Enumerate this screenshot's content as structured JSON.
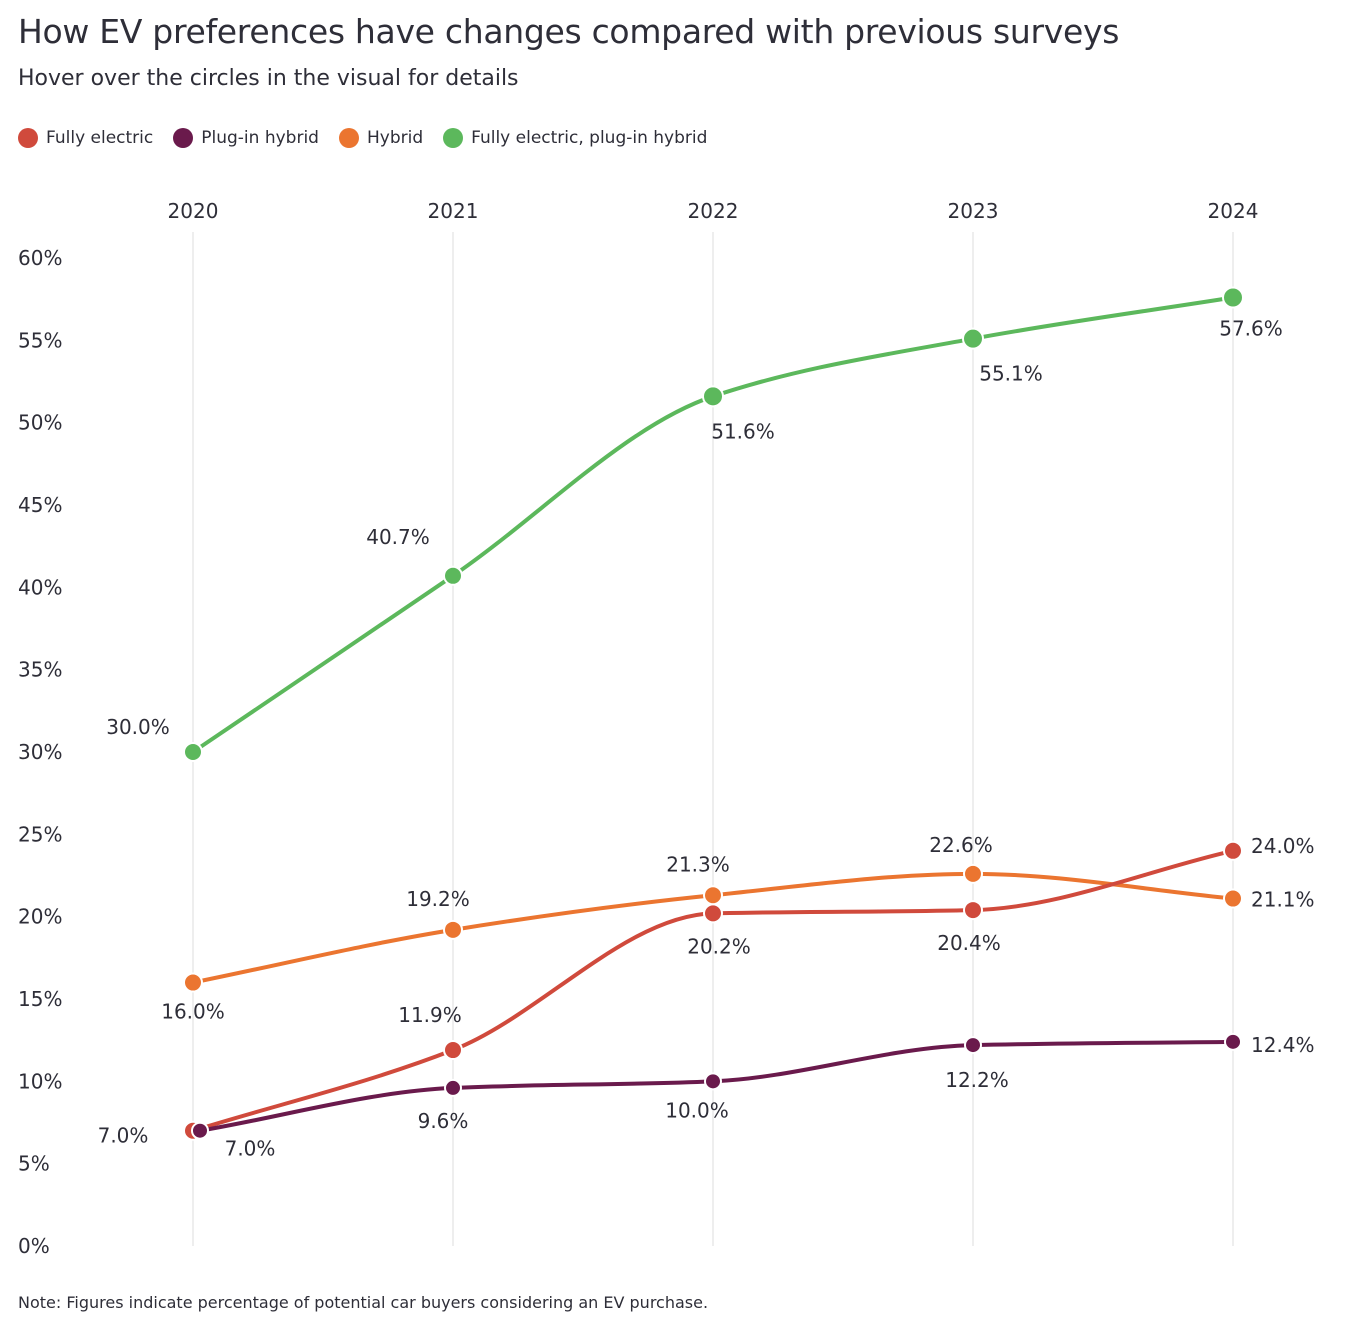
{
  "header": {
    "title": "How EV preferences have changes compared with previous surveys",
    "subtitle": "Hover over the circles in the visual for details"
  },
  "legend": [
    {
      "label": "Fully electric",
      "color": "#d04a3c"
    },
    {
      "label": "Plug-in hybrid",
      "color": "#6a1a4c"
    },
    {
      "label": "Hybrid",
      "color": "#eb7530"
    },
    {
      "label": "Fully electric, plug-in hybrid",
      "color": "#5cb85c"
    }
  ],
  "note": "Note: Figures indicate percentage of potential car buyers considering an EV purchase.",
  "chart_data": {
    "type": "line",
    "x": [
      "2020",
      "2021",
      "2022",
      "2023",
      "2024"
    ],
    "yticks": [
      "0%",
      "5%",
      "10%",
      "15%",
      "20%",
      "25%",
      "30%",
      "35%",
      "40%",
      "45%",
      "50%",
      "55%",
      "60%"
    ],
    "ylim": [
      0,
      60
    ],
    "grid": "vertical",
    "xaxis_position": "top",
    "legend_position": "top-left",
    "series": [
      {
        "name": "Fully electric, plug-in hybrid",
        "color": "#5cb85c",
        "values": [
          30.0,
          40.7,
          51.6,
          55.1,
          57.6
        ],
        "labels": [
          "30.0%",
          "40.7%",
          "51.6%",
          "55.1%",
          "57.6%"
        ]
      },
      {
        "name": "Hybrid",
        "color": "#eb7530",
        "values": [
          16.0,
          19.2,
          21.3,
          22.6,
          21.1
        ],
        "labels": [
          "16.0%",
          "19.2%",
          "21.3%",
          "22.6%",
          "21.1%"
        ]
      },
      {
        "name": "Fully electric",
        "color": "#d04a3c",
        "values": [
          7.0,
          11.9,
          20.2,
          20.4,
          24.0
        ],
        "labels": [
          "7.0%",
          "11.9%",
          "20.2%",
          "20.4%",
          "24.0%"
        ]
      },
      {
        "name": "Plug-in hybrid",
        "color": "#6a1a4c",
        "values": [
          7.0,
          9.6,
          10.0,
          12.2,
          12.4
        ],
        "labels": [
          "7.0%",
          "9.6%",
          "10.0%",
          "12.2%",
          "12.4%"
        ]
      }
    ]
  }
}
